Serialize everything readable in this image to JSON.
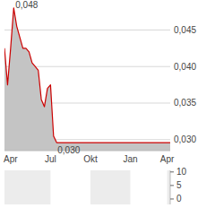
{
  "chart_data": [
    {
      "type": "area",
      "color": "#cc0000",
      "categories": [
        null,
        null,
        "Apr",
        null,
        null,
        null,
        null,
        null,
        null,
        null,
        null,
        null,
        null,
        null,
        null,
        "Jul",
        null,
        null,
        null,
        null,
        null,
        null,
        null,
        null,
        null,
        null,
        null,
        null,
        "Okt",
        null,
        null,
        null,
        null,
        null,
        null,
        null,
        null,
        null,
        null,
        null,
        null,
        "Jan",
        null,
        null,
        null,
        null,
        null,
        null,
        null,
        null,
        null,
        null,
        null,
        "Apr",
        null
      ],
      "values": [
        0.0425,
        0.0375,
        0.0425,
        0.048,
        0.0455,
        0.044,
        0.0425,
        0.0425,
        0.042,
        0.0405,
        0.04,
        0.0395,
        0.0355,
        0.0345,
        0.037,
        0.0375,
        0.0305,
        0.0296,
        0.0296,
        0.0296,
        0.0296,
        0.0296,
        0.0296,
        0.0296,
        0.0296,
        0.0296,
        0.0296,
        0.0296,
        0.0296,
        0.0296,
        0.0296,
        0.0296,
        0.0296,
        0.0296,
        0.0296,
        0.0296,
        0.0296,
        0.0296,
        0.0296,
        0.0296,
        0.0296,
        0.0296,
        0.0296,
        0.0296,
        0.0296,
        0.0296,
        0.0296,
        0.0296,
        0.0296,
        0.0296,
        0.0296,
        0.0296,
        0.0296,
        0.0296,
        0.0296
      ],
      "ylim": [
        0.0285,
        0.0491
      ],
      "yticks": [
        {
          "value": 0.03,
          "label": "0,030"
        },
        {
          "value": 0.035,
          "label": "0,035"
        },
        {
          "value": 0.04,
          "label": "0,040"
        },
        {
          "value": 0.045,
          "label": "0,045"
        }
      ],
      "grid": true,
      "annotations": [
        {
          "text": "0,048",
          "index": 3,
          "value": 0.048
        },
        {
          "text": "0,030",
          "index": 17,
          "value": 0.0296
        }
      ]
    },
    {
      "type": "bar",
      "ylim": [
        -2,
        10.6
      ],
      "yticks": [
        0,
        5,
        10
      ],
      "tick_labels": "y"
    }
  ]
}
